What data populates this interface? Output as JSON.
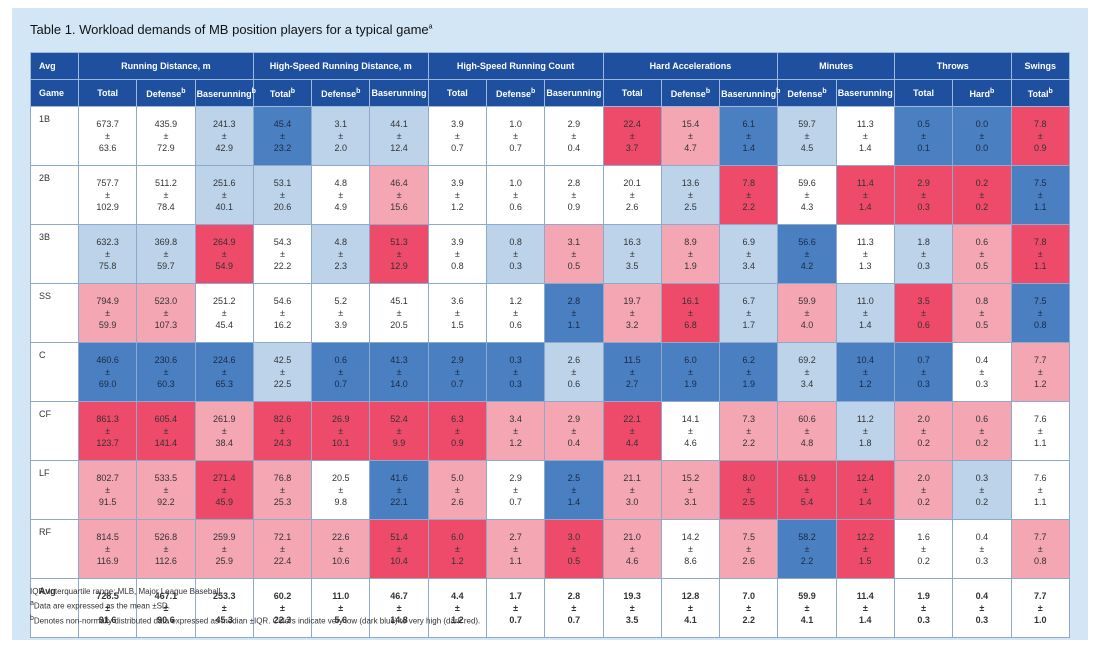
{
  "title": "Table 1.  Workload demands of MB position players for a typical game",
  "title_sup": "a",
  "pm": "±",
  "header_top": [
    {
      "label": "Avg",
      "span": 1
    },
    {
      "label": "Running Distance, m",
      "span": 3
    },
    {
      "label": "High-Speed Running Distance, m",
      "span": 3
    },
    {
      "label": "High-Speed Running Count",
      "span": 3
    },
    {
      "label": "Hard Accelerations",
      "span": 3
    },
    {
      "label": "Minutes",
      "span": 2
    },
    {
      "label": "Throws",
      "span": 2
    },
    {
      "label": "Swings",
      "span": 1
    }
  ],
  "header_sub": [
    {
      "label": "Game"
    },
    {
      "label": "Total"
    },
    {
      "label": "Defense",
      "sup": "b"
    },
    {
      "label": "Baserunning",
      "sup": "b"
    },
    {
      "label": "Total",
      "sup": "b"
    },
    {
      "label": "Defense",
      "sup": "b"
    },
    {
      "label": "Baserunning"
    },
    {
      "label": "Total"
    },
    {
      "label": "Defense",
      "sup": "b"
    },
    {
      "label": "Baserunning"
    },
    {
      "label": "Total"
    },
    {
      "label": "Defense",
      "sup": "b"
    },
    {
      "label": "Baserunning",
      "sup": "b"
    },
    {
      "label": "Defense",
      "sup": "b"
    },
    {
      "label": "Baserunning"
    },
    {
      "label": "Total"
    },
    {
      "label": "Hard",
      "sup": "b"
    },
    {
      "label": "Total",
      "sup": "b"
    }
  ],
  "rows": [
    {
      "label": "1B",
      "cells": [
        [
          "673.7",
          "63.6",
          "#ffffff"
        ],
        [
          "435.9",
          "72.9",
          "#ffffff"
        ],
        [
          "241.3",
          "42.9",
          "#bcd3ea"
        ],
        [
          "45.4",
          "23.2",
          "#4a7fc1"
        ],
        [
          "3.1",
          "2.0",
          "#bcd3ea"
        ],
        [
          "44.1",
          "12.4",
          "#bcd3ea"
        ],
        [
          "3.9",
          "0.7",
          "#ffffff"
        ],
        [
          "1.0",
          "0.7",
          "#ffffff"
        ],
        [
          "2.9",
          "0.4",
          "#ffffff"
        ],
        [
          "22.4",
          "3.7",
          "#ee4a6a"
        ],
        [
          "15.4",
          "4.7",
          "#f4a6b3"
        ],
        [
          "6.1",
          "1.4",
          "#4a7fc1"
        ],
        [
          "59.7",
          "4.5",
          "#bcd3ea"
        ],
        [
          "11.3",
          "1.4",
          "#ffffff"
        ],
        [
          "0.5",
          "0.1",
          "#4a7fc1"
        ],
        [
          "0.0",
          "0.0",
          "#4a7fc1"
        ],
        [
          "7.8",
          "0.9",
          "#ee4a6a"
        ]
      ]
    },
    {
      "label": "2B",
      "cells": [
        [
          "757.7",
          "102.9",
          "#ffffff"
        ],
        [
          "511.2",
          "78.4",
          "#ffffff"
        ],
        [
          "251.6",
          "40.1",
          "#bcd3ea"
        ],
        [
          "53.1",
          "20.6",
          "#bcd3ea"
        ],
        [
          "4.8",
          "4.9",
          "#ffffff"
        ],
        [
          "46.4",
          "15.6",
          "#f4a6b3"
        ],
        [
          "3.9",
          "1.2",
          "#ffffff"
        ],
        [
          "1.0",
          "0.6",
          "#ffffff"
        ],
        [
          "2.8",
          "0.9",
          "#ffffff"
        ],
        [
          "20.1",
          "2.6",
          "#ffffff"
        ],
        [
          "13.6",
          "2.5",
          "#bcd3ea"
        ],
        [
          "7.8",
          "2.2",
          "#ee4a6a"
        ],
        [
          "59.6",
          "4.3",
          "#ffffff"
        ],
        [
          "11.4",
          "1.4",
          "#ee4a6a"
        ],
        [
          "2.9",
          "0.3",
          "#ee4a6a"
        ],
        [
          "0.2",
          "0.2",
          "#ee4a6a"
        ],
        [
          "7.5",
          "1.1",
          "#4a7fc1"
        ]
      ]
    },
    {
      "label": "3B",
      "cells": [
        [
          "632.3",
          "75.8",
          "#bcd3ea"
        ],
        [
          "369.8",
          "59.7",
          "#bcd3ea"
        ],
        [
          "264.9",
          "54.9",
          "#ee4a6a"
        ],
        [
          "54.3",
          "22.2",
          "#ffffff"
        ],
        [
          "4.8",
          "2.3",
          "#bcd3ea"
        ],
        [
          "51.3",
          "12.9",
          "#ee4a6a"
        ],
        [
          "3.9",
          "0.8",
          "#ffffff"
        ],
        [
          "0.8",
          "0.3",
          "#bcd3ea"
        ],
        [
          "3.1",
          "0.5",
          "#f4a6b3"
        ],
        [
          "16.3",
          "3.5",
          "#bcd3ea"
        ],
        [
          "8.9",
          "1.9",
          "#f4a6b3"
        ],
        [
          "6.9",
          "3.4",
          "#bcd3ea"
        ],
        [
          "56.6",
          "4.2",
          "#4a7fc1"
        ],
        [
          "11.3",
          "1.3",
          "#ffffff"
        ],
        [
          "1.8",
          "0.3",
          "#bcd3ea"
        ],
        [
          "0.6",
          "0.5",
          "#f4a6b3"
        ],
        [
          "7.8",
          "1.1",
          "#ee4a6a"
        ]
      ]
    },
    {
      "label": "SS",
      "cells": [
        [
          "794.9",
          "59.9",
          "#f4a6b3"
        ],
        [
          "523.0",
          "107.3",
          "#f4a6b3"
        ],
        [
          "251.2",
          "45.4",
          "#ffffff"
        ],
        [
          "54.6",
          "16.2",
          "#ffffff"
        ],
        [
          "5.2",
          "3.9",
          "#ffffff"
        ],
        [
          "45.1",
          "20.5",
          "#ffffff"
        ],
        [
          "3.6",
          "1.5",
          "#ffffff"
        ],
        [
          "1.2",
          "0.6",
          "#ffffff"
        ],
        [
          "2.8",
          "1.1",
          "#4a7fc1"
        ],
        [
          "19.7",
          "3.2",
          "#f4a6b3"
        ],
        [
          "16.1",
          "6.8",
          "#ee4a6a"
        ],
        [
          "6.7",
          "1.7",
          "#bcd3ea"
        ],
        [
          "59.9",
          "4.0",
          "#f4a6b3"
        ],
        [
          "11.0",
          "1.4",
          "#bcd3ea"
        ],
        [
          "3.5",
          "0.6",
          "#ee4a6a"
        ],
        [
          "0.8",
          "0.5",
          "#f4a6b3"
        ],
        [
          "7.5",
          "0.8",
          "#4a7fc1"
        ]
      ]
    },
    {
      "label": "C",
      "cells": [
        [
          "460.6",
          "69.0",
          "#4a7fc1"
        ],
        [
          "230.6",
          "60.3",
          "#4a7fc1"
        ],
        [
          "224.6",
          "65.3",
          "#4a7fc1"
        ],
        [
          "42.5",
          "22.5",
          "#bcd3ea"
        ],
        [
          "0.6",
          "0.7",
          "#4a7fc1"
        ],
        [
          "41.3",
          "14.0",
          "#4a7fc1"
        ],
        [
          "2.9",
          "0.7",
          "#4a7fc1"
        ],
        [
          "0.3",
          "0.3",
          "#4a7fc1"
        ],
        [
          "2.6",
          "0.6",
          "#bcd3ea"
        ],
        [
          "11.5",
          "2.7",
          "#4a7fc1"
        ],
        [
          "6.0",
          "1.9",
          "#4a7fc1"
        ],
        [
          "6.2",
          "1.9",
          "#4a7fc1"
        ],
        [
          "69.2",
          "3.4",
          "#bcd3ea"
        ],
        [
          "10.4",
          "1.2",
          "#4a7fc1"
        ],
        [
          "0.7",
          "0.3",
          "#4a7fc1"
        ],
        [
          "0.4",
          "0.3",
          "#ffffff"
        ],
        [
          "7.7",
          "1.2",
          "#f4a6b3"
        ]
      ]
    },
    {
      "label": "CF",
      "cells": [
        [
          "861.3",
          "123.7",
          "#ee4a6a"
        ],
        [
          "605.4",
          "141.4",
          "#ee4a6a"
        ],
        [
          "261.9",
          "38.4",
          "#f4a6b3"
        ],
        [
          "82.6",
          "24.3",
          "#ee4a6a"
        ],
        [
          "26.9",
          "10.1",
          "#ee4a6a"
        ],
        [
          "52.4",
          "9.9",
          "#ee4a6a"
        ],
        [
          "6.3",
          "0.9",
          "#ee4a6a"
        ],
        [
          "3.4",
          "1.2",
          "#f4a6b3"
        ],
        [
          "2.9",
          "0.4",
          "#f4a6b3"
        ],
        [
          "22.1",
          "4.4",
          "#ee4a6a"
        ],
        [
          "14.1",
          "4.6",
          "#ffffff"
        ],
        [
          "7.3",
          "2.2",
          "#f4a6b3"
        ],
        [
          "60.6",
          "4.8",
          "#f4a6b3"
        ],
        [
          "11.2",
          "1.8",
          "#bcd3ea"
        ],
        [
          "2.0",
          "0.2",
          "#f4a6b3"
        ],
        [
          "0.6",
          "0.2",
          "#f4a6b3"
        ],
        [
          "7.6",
          "1.1",
          "#ffffff"
        ]
      ]
    },
    {
      "label": "LF",
      "cells": [
        [
          "802.7",
          "91.5",
          "#f4a6b3"
        ],
        [
          "533.5",
          "92.2",
          "#f4a6b3"
        ],
        [
          "271.4",
          "45.9",
          "#ee4a6a"
        ],
        [
          "76.8",
          "25.3",
          "#f4a6b3"
        ],
        [
          "20.5",
          "9.8",
          "#ffffff"
        ],
        [
          "41.6",
          "22.1",
          "#4a7fc1"
        ],
        [
          "5.0",
          "2.6",
          "#f4a6b3"
        ],
        [
          "2.9",
          "0.7",
          "#ffffff"
        ],
        [
          "2.5",
          "1.4",
          "#4a7fc1"
        ],
        [
          "21.1",
          "3.0",
          "#f4a6b3"
        ],
        [
          "15.2",
          "3.1",
          "#f4a6b3"
        ],
        [
          "8.0",
          "2.5",
          "#ee4a6a"
        ],
        [
          "61.9",
          "5.4",
          "#ee4a6a"
        ],
        [
          "12.4",
          "1.4",
          "#ee4a6a"
        ],
        [
          "2.0",
          "0.2",
          "#f4a6b3"
        ],
        [
          "0.3",
          "0.2",
          "#bcd3ea"
        ],
        [
          "7.6",
          "1.1",
          "#ffffff"
        ]
      ]
    },
    {
      "label": "RF",
      "cells": [
        [
          "814.5",
          "116.9",
          "#f4a6b3"
        ],
        [
          "526.8",
          "112.6",
          "#f4a6b3"
        ],
        [
          "259.9",
          "25.9",
          "#f4a6b3"
        ],
        [
          "72.1",
          "22.4",
          "#f4a6b3"
        ],
        [
          "22.6",
          "10.6",
          "#f4a6b3"
        ],
        [
          "51.4",
          "10.4",
          "#ee4a6a"
        ],
        [
          "6.0",
          "1.2",
          "#ee4a6a"
        ],
        [
          "2.7",
          "1.1",
          "#f4a6b3"
        ],
        [
          "3.0",
          "0.5",
          "#ee4a6a"
        ],
        [
          "21.0",
          "4.6",
          "#f4a6b3"
        ],
        [
          "14.2",
          "8.6",
          "#ffffff"
        ],
        [
          "7.5",
          "2.6",
          "#f4a6b3"
        ],
        [
          "58.2",
          "2.2",
          "#4a7fc1"
        ],
        [
          "12.2",
          "1.5",
          "#ee4a6a"
        ],
        [
          "1.6",
          "0.2",
          "#ffffff"
        ],
        [
          "0.4",
          "0.3",
          "#ffffff"
        ],
        [
          "7.7",
          "0.8",
          "#f4a6b3"
        ]
      ]
    },
    {
      "label": "Avg",
      "bold": true,
      "cells": [
        [
          "728.5",
          "91.6",
          "#ffffff"
        ],
        [
          "467.1",
          "90.6",
          "#ffffff"
        ],
        [
          "253.3",
          "45.3",
          "#ffffff"
        ],
        [
          "60.2",
          "22.3",
          "#ffffff"
        ],
        [
          "11.0",
          "5.6",
          "#ffffff"
        ],
        [
          "46.7",
          "14.8",
          "#ffffff"
        ],
        [
          "4.4",
          "1.2",
          "#ffffff"
        ],
        [
          "1.7",
          "0.7",
          "#ffffff"
        ],
        [
          "2.8",
          "0.7",
          "#ffffff"
        ],
        [
          "19.3",
          "3.5",
          "#ffffff"
        ],
        [
          "12.8",
          "4.1",
          "#ffffff"
        ],
        [
          "7.0",
          "2.2",
          "#ffffff"
        ],
        [
          "59.9",
          "4.1",
          "#ffffff"
        ],
        [
          "11.4",
          "1.4",
          "#ffffff"
        ],
        [
          "1.9",
          "0.3",
          "#ffffff"
        ],
        [
          "0.4",
          "0.3",
          "#ffffff"
        ],
        [
          "7.7",
          "1.0",
          "#ffffff"
        ]
      ]
    }
  ],
  "footnotes": [
    {
      "text": "IQR, interquartile range; MLB, Major League Baseball."
    },
    {
      "sup": "a",
      "text": "Data are expressed as the mean ±SD."
    },
    {
      "sup": "b",
      "text": "Denotes non-normally distributed data expressed as median ±IQR. Colors indicate very low (dark blue) to very high (dark red)."
    }
  ]
}
